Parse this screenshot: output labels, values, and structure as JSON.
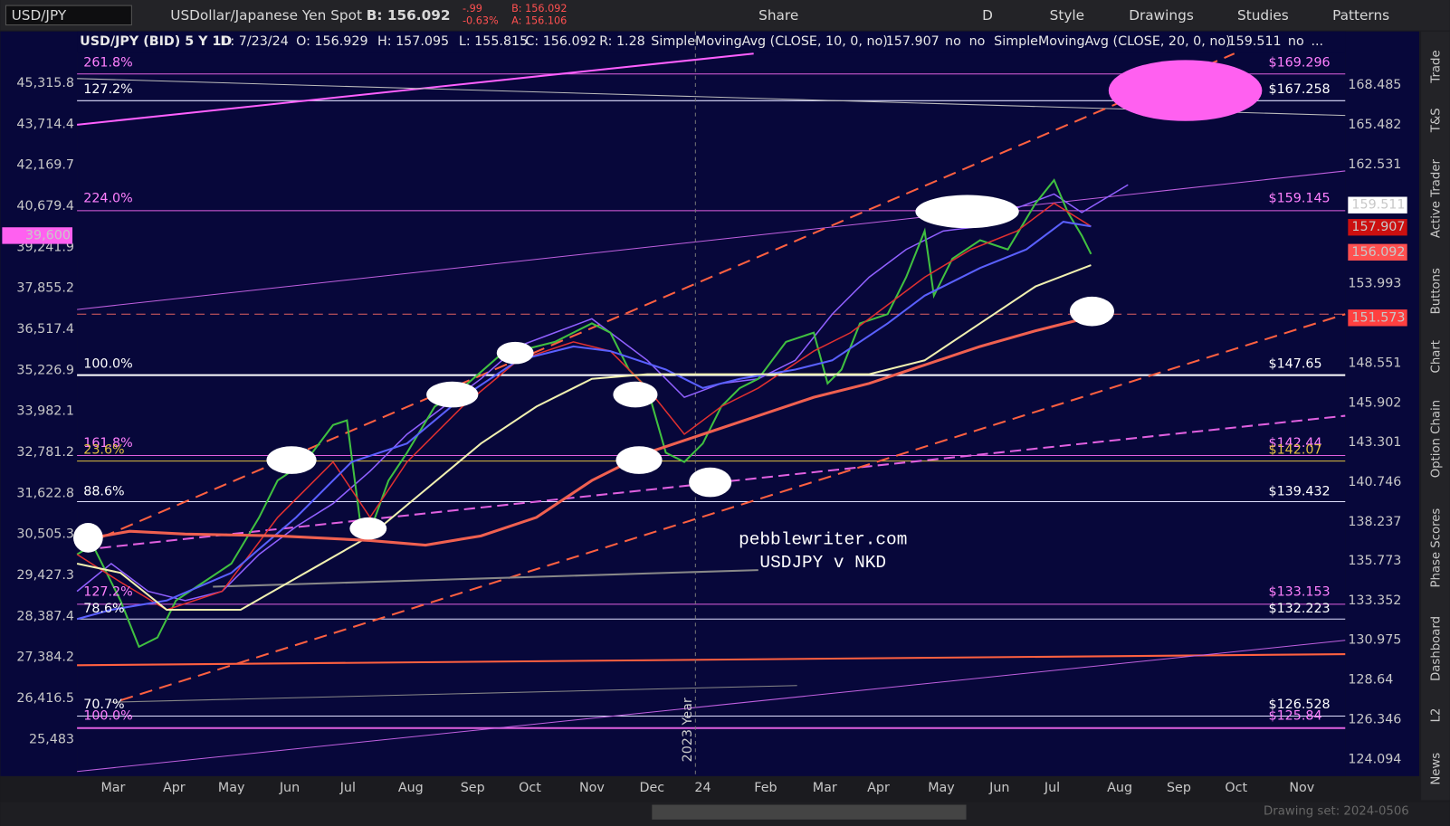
{
  "toolbar": {
    "symbol": "USD/JPY",
    "description": "USDollar/Japanese Yen Spot",
    "bid": "B: 156.092",
    "change": "-.99",
    "change_pct": "-0.63%",
    "bid_small": "B: 156.092",
    "ask_small": "A: 156.106",
    "buttons": [
      "Share",
      "D",
      "Style",
      "Drawings",
      "Studies",
      "Patterns"
    ]
  },
  "header": {
    "items": [
      "USD/JPY (BID) 5 Y 1D",
      "D: 7/23/24",
      "O: 156.929",
      "H: 157.095",
      "L: 155.815",
      "C: 156.092",
      "R: 1.28"
    ],
    "study1": "SimpleMovingAvg (CLOSE, 10, 0, no)",
    "study1_value": "157.907",
    "no1": "no",
    "no2": "no",
    "study2": "SimpleMovingAvg (CLOSE, 20, 0, no)",
    "study2_value": "159.511",
    "no3": "no",
    "more": "..."
  },
  "left_axis": {
    "labels": [
      "45,315.8",
      "43,714.4",
      "42,169.7",
      "40,679.4",
      "39,241.9",
      "37,855.2",
      "36,517.4",
      "35,226.9",
      "33,982.1",
      "32,781.2",
      "31,622.8",
      "30,505.3",
      "29,427.3",
      "28,387.4",
      "27,384.2",
      "26,416.5",
      "25,483"
    ],
    "highlight": "39,600"
  },
  "right_axis": {
    "labels": [
      "168.485",
      "165.482",
      "162.531",
      "153.993",
      "148.551",
      "145.902",
      "143.301",
      "140.746",
      "138.237",
      "135.773",
      "133.352",
      "130.975",
      "128.64",
      "126.346",
      "124.094"
    ],
    "badges": [
      "159.511",
      "157.907",
      "156.092",
      "151.573"
    ]
  },
  "fib_left": [
    "261.8%",
    "127.2%",
    "224.0%",
    "100.0%",
    "161.8%",
    "23.6%",
    "88.6%",
    "127.2%",
    "78.6%",
    "70.7%",
    "100.0%"
  ],
  "fib_right": [
    "$169.296",
    "$167.258",
    "$159.145",
    "$147.65",
    "$142.44",
    "$142.07",
    "$139.432",
    "$133.153",
    "$132.223",
    "$126.528",
    "$125.84"
  ],
  "x_axis": [
    "Mar",
    "Apr",
    "May",
    "Jun",
    "Jul",
    "Aug",
    "Sep",
    "Oct",
    "Nov",
    "Dec",
    "24",
    "Feb",
    "Mar",
    "Apr",
    "May",
    "Jun",
    "Jul",
    "Aug",
    "Sep",
    "Oct",
    "Nov"
  ],
  "year_marker": "2023 Year",
  "annotation": [
    "pebblewriter.com",
    "USDJPY v NKD"
  ],
  "side_tabs": [
    "Trade",
    "T&S",
    "Active Trader",
    "Buttons",
    "Chart",
    "Option Chain",
    "Phase Scores",
    "Dashboard",
    "L2",
    "News"
  ],
  "footer": "Drawing set: 2024-0506"
}
